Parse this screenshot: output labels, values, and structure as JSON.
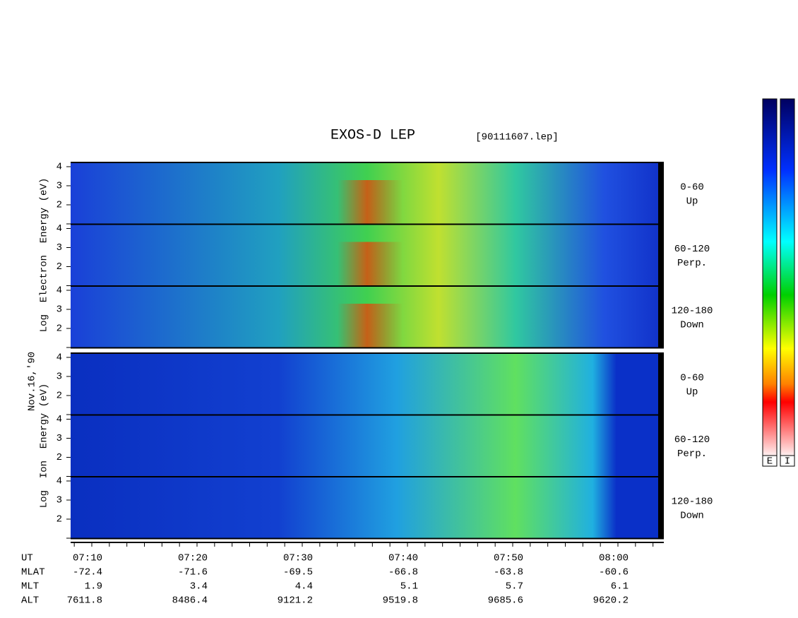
{
  "header": {
    "title": "EXOS-D LEP",
    "file": "[90111607.lep]"
  },
  "date": "Nov.16,'90",
  "electron": {
    "axis_label": "Log  Electron  Energy (eV)",
    "panels": [
      {
        "range": "0-60",
        "direction": "Up"
      },
      {
        "range": "60-120",
        "direction": "Perp."
      },
      {
        "range": "120-180",
        "direction": "Down"
      }
    ]
  },
  "ion": {
    "axis_label": "Log  Ion  Energy (eV)",
    "panels": [
      {
        "range": "0-60",
        "direction": "Up"
      },
      {
        "range": "60-120",
        "direction": "Perp."
      },
      {
        "range": "120-180",
        "direction": "Down"
      }
    ]
  },
  "energy_ticks": [
    "4",
    "3",
    "2"
  ],
  "footer": {
    "rows": [
      {
        "label": "UT",
        "values": [
          "07:10",
          "07:20",
          "07:30",
          "07:40",
          "07:50",
          "08:00"
        ]
      },
      {
        "label": "MLAT",
        "values": [
          "-72.4",
          "-71.6",
          "-69.5",
          "-66.8",
          "-63.8",
          "-60.6"
        ]
      },
      {
        "label": "MLT",
        "values": [
          "1.9",
          "3.4",
          "4.4",
          "5.1",
          "5.7",
          "6.1"
        ]
      },
      {
        "label": "ALT",
        "values": [
          "7611.8",
          "8486.4",
          "9121.2",
          "9519.8",
          "9685.6",
          "9620.2"
        ]
      }
    ]
  },
  "colorbar": {
    "labels": [
      "E",
      "I"
    ]
  }
}
